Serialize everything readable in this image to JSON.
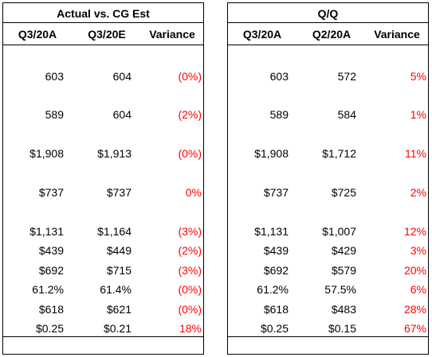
{
  "panels": [
    {
      "title": "Actual vs. CG Est",
      "headers": [
        "Q3/20A",
        "Q3/20E",
        "Variance"
      ],
      "rows": [
        [
          "603",
          "604",
          "(0%)"
        ],
        [
          "589",
          "604",
          "(2%)"
        ],
        [
          "$1,908",
          "$1,913",
          "(0%)"
        ],
        [
          "$737",
          "$737",
          "0%"
        ],
        [
          "$1,131",
          "$1,164",
          "(3%)"
        ],
        [
          "$439",
          "$449",
          "(2%)"
        ],
        [
          "$692",
          "$715",
          "(3%)"
        ],
        [
          "61.2%",
          "61.4%",
          "(0%)"
        ],
        [
          "$618",
          "$621",
          "(0%)"
        ],
        [
          "$0.25",
          "$0.21",
          "18%"
        ]
      ]
    },
    {
      "title": "Q/Q",
      "headers": [
        "Q3/20A",
        "Q2/20A",
        "Variance"
      ],
      "rows": [
        [
          "603",
          "572",
          "5%"
        ],
        [
          "589",
          "584",
          "1%"
        ],
        [
          "$1,908",
          "$1,712",
          "11%"
        ],
        [
          "$737",
          "$725",
          "2%"
        ],
        [
          "$1,131",
          "$1,007",
          "12%"
        ],
        [
          "$439",
          "$429",
          "3%"
        ],
        [
          "$692",
          "$579",
          "20%"
        ],
        [
          "61.2%",
          "57.5%",
          "6%"
        ],
        [
          "$618",
          "$483",
          "28%"
        ],
        [
          "$0.25",
          "$0.15",
          "67%"
        ]
      ]
    }
  ]
}
